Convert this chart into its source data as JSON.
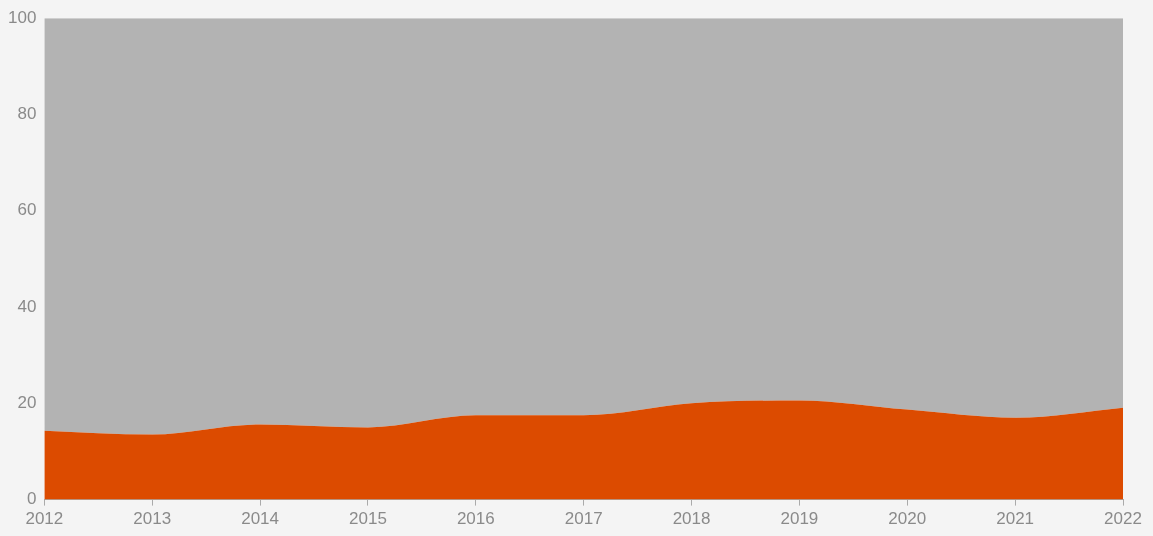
{
  "chart_data": {
    "type": "area",
    "stacked": true,
    "x": [
      2012,
      2013,
      2014,
      2015,
      2016,
      2017,
      2018,
      2019,
      2020,
      2021,
      2022
    ],
    "series": [
      {
        "color": "#dc4b00",
        "values": [
          14.3,
          13.5,
          15.6,
          15.0,
          17.5,
          17.5,
          20.0,
          20.6,
          18.7,
          17.0,
          19.1
        ]
      },
      {
        "color": "#b3b3b3",
        "values": [
          85.7,
          86.5,
          84.4,
          85.0,
          82.5,
          82.5,
          80.0,
          79.4,
          81.3,
          83.0,
          80.9
        ]
      }
    ],
    "xlim": [
      2012,
      2022
    ],
    "xticks": [
      2012,
      2013,
      2014,
      2015,
      2016,
      2017,
      2018,
      2019,
      2020,
      2021,
      2022
    ],
    "ylim": [
      0,
      100
    ],
    "yticks": [
      0,
      20,
      40,
      60,
      80,
      100
    ],
    "grid": false,
    "legend": false
  }
}
